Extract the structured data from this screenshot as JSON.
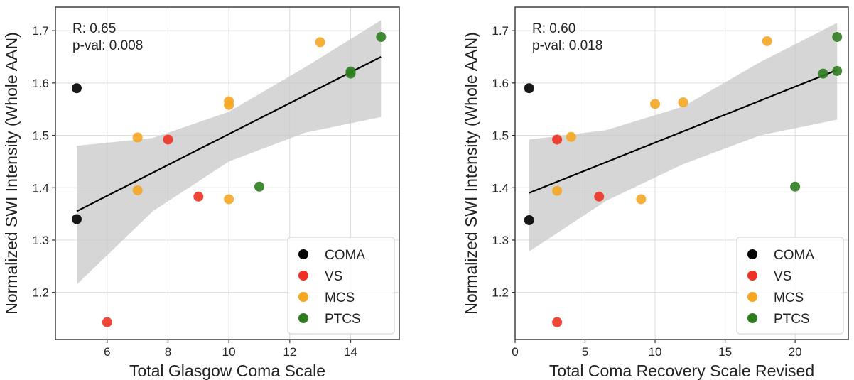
{
  "chart_data": [
    {
      "type": "scatter",
      "xlabel": "Total Glasgow Coma Scale",
      "ylabel": "Normalized SWI Intensity (Whole AAN)",
      "xlim": [
        4.3,
        15.6
      ],
      "ylim": [
        1.11,
        1.745
      ],
      "xticks": [
        6,
        8,
        10,
        12,
        14
      ],
      "yticks": [
        1.2,
        1.3,
        1.4,
        1.5,
        1.6,
        1.7
      ],
      "grid": true,
      "annotations": [
        "R: 0.65",
        "p-val: 0.008"
      ],
      "legend_placement": "lower-right",
      "regression": {
        "x": [
          5,
          15
        ],
        "y": [
          1.355,
          1.65
        ]
      },
      "confidence_band": {
        "x": [
          5,
          7.5,
          10,
          12.5,
          15
        ],
        "upper": [
          1.48,
          1.495,
          1.545,
          1.63,
          1.72
        ],
        "lower": [
          1.215,
          1.355,
          1.45,
          1.505,
          1.535
        ]
      },
      "series": [
        {
          "name": "COMA",
          "color": "#000000",
          "points": [
            [
              5,
              1.59
            ],
            [
              5,
              1.34
            ]
          ]
        },
        {
          "name": "VS",
          "color": "#ee3124",
          "points": [
            [
              8,
              1.492
            ],
            [
              9,
              1.383
            ],
            [
              6,
              1.143
            ]
          ]
        },
        {
          "name": "MCS",
          "color": "#f5a623",
          "points": [
            [
              7,
              1.496
            ],
            [
              7,
              1.395
            ],
            [
              10,
              1.565
            ],
            [
              10,
              1.558
            ],
            [
              10,
              1.378
            ],
            [
              13,
              1.678
            ]
          ]
        },
        {
          "name": "PTCS",
          "color": "#2e7d1f",
          "points": [
            [
              11,
              1.402
            ],
            [
              14,
              1.622
            ],
            [
              14,
              1.618
            ],
            [
              15,
              1.688
            ]
          ]
        }
      ]
    },
    {
      "type": "scatter",
      "xlabel": "Total Coma Recovery Scale Revised",
      "ylabel": "Normalized SWI Intensity (Whole AAN)",
      "xlim": [
        0,
        23.8
      ],
      "ylim": [
        1.11,
        1.745
      ],
      "xticks": [
        0,
        5,
        10,
        15,
        20
      ],
      "yticks": [
        1.2,
        1.3,
        1.4,
        1.5,
        1.6,
        1.7
      ],
      "grid": true,
      "annotations": [
        "R: 0.60",
        "p-val: 0.018"
      ],
      "legend_placement": "lower-right",
      "regression": {
        "x": [
          1,
          23
        ],
        "y": [
          1.39,
          1.625
        ]
      },
      "confidence_band": {
        "x": [
          1,
          6.5,
          12,
          17.5,
          23
        ],
        "upper": [
          1.492,
          1.51,
          1.555,
          1.64,
          1.715
        ],
        "lower": [
          1.278,
          1.375,
          1.445,
          1.5,
          1.53
        ]
      },
      "series": [
        {
          "name": "COMA",
          "color": "#000000",
          "points": [
            [
              1,
              1.59
            ],
            [
              1,
              1.338
            ]
          ]
        },
        {
          "name": "VS",
          "color": "#ee3124",
          "points": [
            [
              3,
              1.492
            ],
            [
              6,
              1.383
            ],
            [
              3,
              1.143
            ]
          ]
        },
        {
          "name": "MCS",
          "color": "#f5a623",
          "points": [
            [
              4,
              1.497
            ],
            [
              3,
              1.394
            ],
            [
              10,
              1.56
            ],
            [
              12,
              1.563
            ],
            [
              9,
              1.378
            ],
            [
              18,
              1.68
            ]
          ]
        },
        {
          "name": "PTCS",
          "color": "#2e7d1f",
          "points": [
            [
              20,
              1.402
            ],
            [
              22,
              1.618
            ],
            [
              23,
              1.623
            ],
            [
              23,
              1.688
            ]
          ]
        }
      ]
    }
  ]
}
